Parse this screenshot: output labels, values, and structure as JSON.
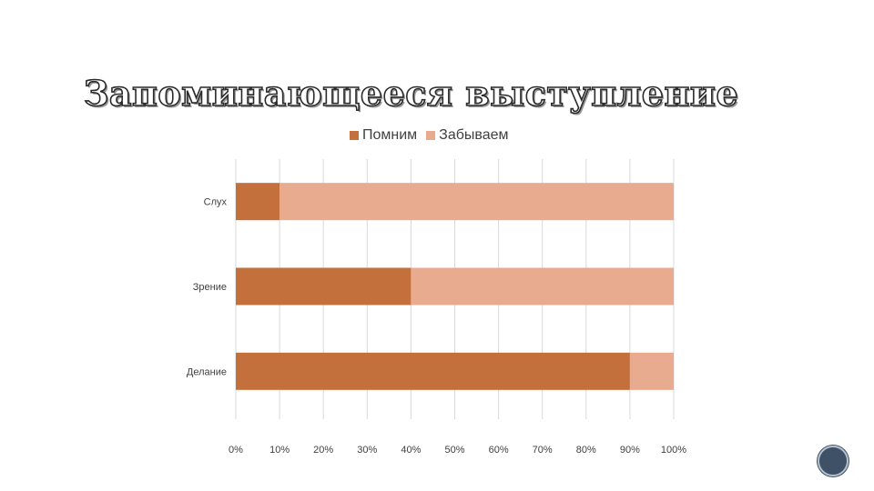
{
  "slide": {
    "title": "Запоминающееся выступление"
  },
  "colors": {
    "remember": "#c4703c",
    "forget": "#e8ab8f",
    "grid": "#d9d9d9",
    "text": "#404040"
  },
  "chart_data": {
    "type": "bar",
    "orientation": "horizontal",
    "stacked": true,
    "categories": [
      "Слух",
      "Зрение",
      "Делание"
    ],
    "series": [
      {
        "name": "Помним",
        "values": [
          10,
          40,
          90
        ]
      },
      {
        "name": "Забываем",
        "values": [
          90,
          60,
          10
        ]
      }
    ],
    "xlim": [
      0,
      100
    ],
    "x_ticks": [
      "0%",
      "10%",
      "20%",
      "30%",
      "40%",
      "50%",
      "60%",
      "70%",
      "80%",
      "90%",
      "100%"
    ],
    "grid": true,
    "legend_position": "top"
  }
}
